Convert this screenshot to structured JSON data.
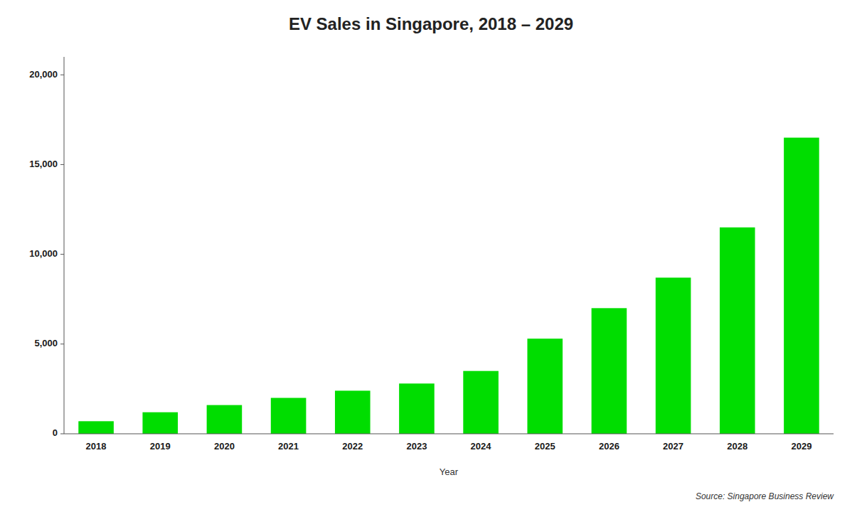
{
  "chart_data": {
    "type": "bar",
    "title": "EV Sales in Singapore, 2018 – 2029",
    "x_label": "Year",
    "categories": [
      "2018",
      "2019",
      "2020",
      "2021",
      "2022",
      "2023",
      "2024",
      "2025",
      "2026",
      "2027",
      "2028",
      "2029"
    ],
    "values": [
      700,
      1200,
      1600,
      2000,
      2400,
      2800,
      3500,
      5300,
      7000,
      8700,
      11500,
      16500
    ],
    "color": "#00DD00",
    "ylim": [
      0,
      21000
    ],
    "yticks": [
      0,
      {
        "value": 5000,
        "label": "5,000"
      },
      {
        "value": 10000,
        "label": "10,000"
      },
      {
        "value": 15000,
        "label": "15,000"
      },
      {
        "value": 20000,
        "label": "20,000"
      }
    ],
    "grid": false,
    "annotations": [
      "Source: Singapore Business Review"
    ]
  }
}
